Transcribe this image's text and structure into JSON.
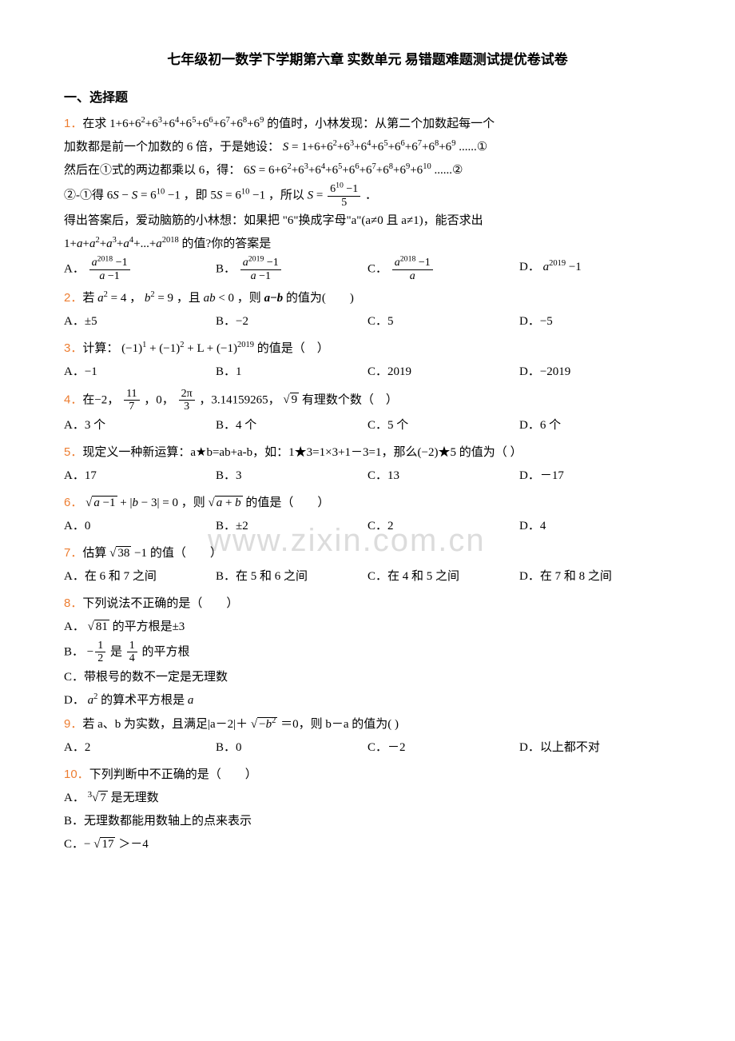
{
  "title": "七年级初一数学下学期第六章 实数单元 易错题难题测试提优卷试卷",
  "section1": "一、选择题",
  "watermark": "www.zixin.com.cn",
  "q1": {
    "num": "1．",
    "l1a": "在求",
    "l1b": "的值时，小林发现：从第二个加数起每一个",
    "l2a": "加数都是前一个加数的 6 倍，于是她设：",
    "l2b": "......①",
    "l3a": "然后在①式的两边都乘以 6，得：",
    "l3b": "......②",
    "l4a": "②-①得",
    "l4b": "，即",
    "l4c": "，所以",
    "l4d": "．",
    "l5": "得出答案后，爱动脑筋的小林想：如果把 \"6\"换成字母\"a\"(a≠0 且 a≠1)，能否求出",
    "l6": "的值?你的答案是",
    "optA": "A．",
    "optB": "B．",
    "optC": "C．",
    "optD": "D．"
  },
  "q2": {
    "num": "2．",
    "text_a": "若",
    "text_b": "，",
    "text_c": "，且",
    "text_d": "，则",
    "text_e": "的值为(　　)",
    "A": "A．±5",
    "B": "B．−2",
    "C": "C．5",
    "D": "D．−5"
  },
  "q3": {
    "num": "3．",
    "text_a": "计算：",
    "text_b": "的值是（　）",
    "A": "A．−1",
    "B": "B．1",
    "C": "C．2019",
    "D": "D．−2019"
  },
  "q4": {
    "num": "4．",
    "text_a": "在−2，",
    "text_b": "，0，",
    "text_c": "，3.14159265，",
    "text_d": "有理数个数（　）",
    "A": "A．3 个",
    "B": "B．4 个",
    "C": "C．5 个",
    "D": "D．6 个"
  },
  "q5": {
    "num": "5．",
    "text": "现定义一种新运算：a★b=ab+a-b，如：1★3=1×3+1－3=1，那么(−2)★5 的值为（ ）",
    "A": "A．17",
    "B": "B．3",
    "C": "C．13",
    "D": "D．－17"
  },
  "q6": {
    "num": "6．",
    "text_a": "",
    "text_b": "，则",
    "text_c": "的值是（　　）",
    "A": "A．0",
    "B": "B．±2",
    "C": "C．2",
    "D": "D．4"
  },
  "q7": {
    "num": "7．",
    "text_a": "估算",
    "text_b": "的值（　　）",
    "A": "A．在 6 和 7 之间",
    "B": "B．在 5 和 6 之间",
    "C": "C．在 4 和 5 之间",
    "D": "D．在 7 和 8 之间"
  },
  "q8": {
    "num": "8．",
    "text": "下列说法不正确的是（　　）",
    "A_a": "A．",
    "A_b": "的平方根是±3",
    "B_a": "B．",
    "B_b": "是",
    "B_c": "的平方根",
    "C": "C．带根号的数不一定是无理数",
    "D_a": "D．",
    "D_b": "的算术平方根是"
  },
  "q9": {
    "num": "9．",
    "text_a": "若 a、b 为实数，且满足|a－2|＋",
    "text_b": "＝0，则 b－a 的值为( )",
    "A": "A．2",
    "B": "B．0",
    "C": "C．－2",
    "D": "D．以上都不对"
  },
  "q10": {
    "num": "10．",
    "text": "下列判断中不正确的是（　　）",
    "A_a": "A．",
    "A_b": "是无理数",
    "B": "B．无理数都能用数轴上的点来表示",
    "C_a": "C．−",
    "C_b": "＞－4"
  }
}
